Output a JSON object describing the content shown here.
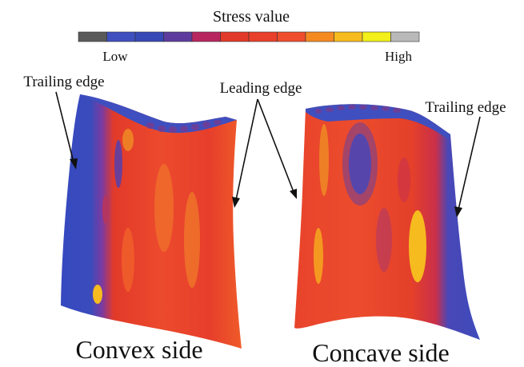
{
  "legend": {
    "title": "Stress value",
    "low_label": "Low",
    "high_label": "High",
    "colors": [
      "#5a5a5a",
      "#3f4fbf",
      "#3748b7",
      "#5d3c9e",
      "#b8265f",
      "#e23a2a",
      "#e8402b",
      "#ee4e2e",
      "#f58a22",
      "#f6bb1f",
      "#f2ef1a",
      "#b9b9b9"
    ]
  },
  "annotations": {
    "convex_trailing": "Trailing edge",
    "leading": "Leading edge",
    "concave_trailing": "Trailing edge"
  },
  "captions": {
    "convex": "Convex side",
    "concave": "Concave side"
  },
  "colors": {
    "low_stress": "#3d4fbe",
    "mid_stress": "#e33c2b",
    "high_stress": "#f6a81f",
    "dark_spot": "#6a3f9a",
    "line": "#111111"
  }
}
